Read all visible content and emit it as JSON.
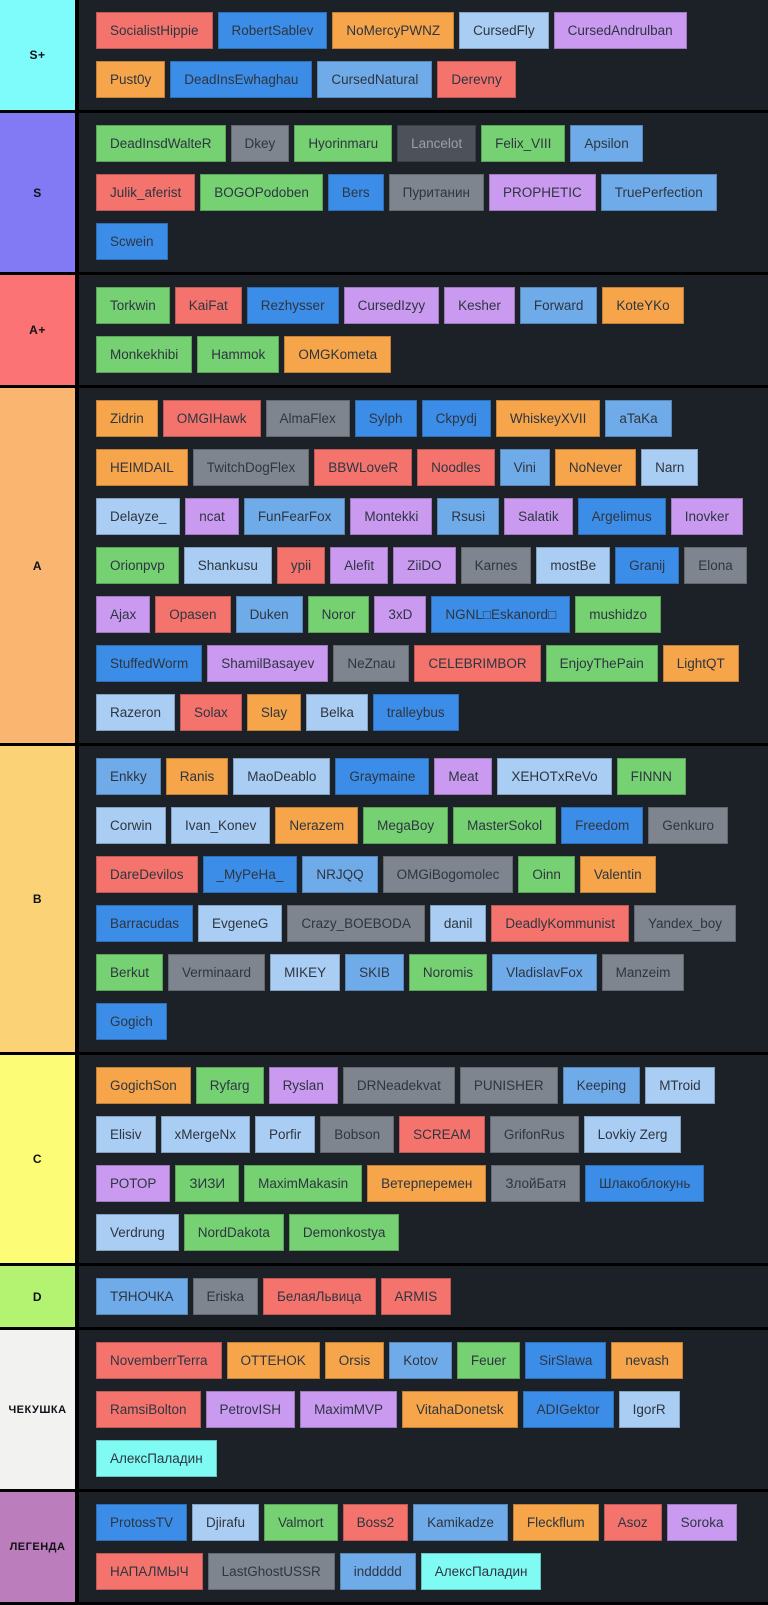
{
  "background": {
    "page": "#1c2027",
    "divider": "#000000"
  },
  "palette": {
    "red": "#f4746d",
    "blue": "#3c8de8",
    "skyblue": "#6fabe9",
    "lightblue": "#a9cdf3",
    "orange": "#f6a54a",
    "lavender": "#c99af0",
    "green": "#76d173",
    "gray": "#7f858e",
    "darkgray": "#4c515a",
    "cyan": "#80fbf4"
  },
  "tiers": [
    {
      "label": "S+",
      "color": "#7efbfb",
      "rows": [
        [
          {
            "t": "SocialistHippie",
            "c": "red"
          },
          {
            "t": "RobertSablev",
            "c": "blue"
          },
          {
            "t": "NoMercyPWNZ",
            "c": "orange"
          },
          {
            "t": "CursedFly",
            "c": "lightblue"
          },
          {
            "t": "CursedAndrulban",
            "c": "lavender"
          }
        ],
        [
          {
            "t": "Pust0y",
            "c": "orange"
          },
          {
            "t": "DeadInsEwhaghau",
            "c": "blue"
          },
          {
            "t": "CursedNatural",
            "c": "skyblue"
          },
          {
            "t": "Derevny",
            "c": "red"
          }
        ]
      ]
    },
    {
      "label": "S",
      "color": "#827af5",
      "rows": [
        [
          {
            "t": "DeadInsdWalteR",
            "c": "green"
          },
          {
            "t": "Dkey",
            "c": "gray"
          },
          {
            "t": "Hyorinmaru",
            "c": "green"
          },
          {
            "t": "Lancelot",
            "c": "darkgray"
          },
          {
            "t": "Felix_VIII",
            "c": "green"
          },
          {
            "t": "Apsilon",
            "c": "skyblue"
          }
        ],
        [
          {
            "t": "Julik_aferist",
            "c": "red"
          },
          {
            "t": "BOGOPodoben",
            "c": "green"
          },
          {
            "t": "Bers",
            "c": "blue"
          },
          {
            "t": "Пуританин",
            "c": "gray"
          },
          {
            "t": "PROPHETIC",
            "c": "lavender"
          },
          {
            "t": "TruePerfection",
            "c": "skyblue"
          }
        ],
        [
          {
            "t": "Scwein",
            "c": "blue"
          }
        ]
      ]
    },
    {
      "label": "A+",
      "color": "#fb7374",
      "rows": [
        [
          {
            "t": "Torkwin",
            "c": "green"
          },
          {
            "t": "KaiFat",
            "c": "red"
          },
          {
            "t": "Rezhysser",
            "c": "blue"
          },
          {
            "t": "CursedIzyy",
            "c": "lavender"
          },
          {
            "t": "Kesher",
            "c": "lavender"
          },
          {
            "t": "Forward",
            "c": "skyblue"
          },
          {
            "t": "KoteYKo",
            "c": "orange"
          }
        ],
        [
          {
            "t": "Monkekhibi",
            "c": "green"
          },
          {
            "t": "Hammok",
            "c": "green"
          },
          {
            "t": "OMGKometa",
            "c": "orange"
          }
        ]
      ]
    },
    {
      "label": "A",
      "color": "#fab671",
      "rows": [
        [
          {
            "t": "Zidrin",
            "c": "orange"
          },
          {
            "t": "OMGIHawk",
            "c": "red"
          },
          {
            "t": "AlmaFlex",
            "c": "gray"
          },
          {
            "t": "Sylph",
            "c": "blue"
          },
          {
            "t": "Ckpydj",
            "c": "blue"
          },
          {
            "t": "WhiskeyXVII",
            "c": "orange"
          },
          {
            "t": "aTaKa",
            "c": "skyblue"
          }
        ],
        [
          {
            "t": "HEIMDAIL",
            "c": "orange"
          },
          {
            "t": "TwitchDogFlex",
            "c": "gray"
          },
          {
            "t": "BBWLoveR",
            "c": "red"
          },
          {
            "t": "Noodles",
            "c": "red"
          },
          {
            "t": "Vini",
            "c": "skyblue"
          },
          {
            "t": "NoNever",
            "c": "orange"
          },
          {
            "t": "Narn",
            "c": "lightblue"
          }
        ],
        [
          {
            "t": "Delayze_",
            "c": "lightblue"
          },
          {
            "t": "ncat",
            "c": "lavender"
          },
          {
            "t": "FunFearFox",
            "c": "skyblue"
          },
          {
            "t": "Montekki",
            "c": "lavender"
          },
          {
            "t": "Rsusi",
            "c": "skyblue"
          },
          {
            "t": "Salatik",
            "c": "lavender"
          },
          {
            "t": "Argelimus",
            "c": "blue"
          },
          {
            "t": "Inovker",
            "c": "lavender"
          }
        ],
        [
          {
            "t": "Orionpvp",
            "c": "green"
          },
          {
            "t": "Shankusu",
            "c": "lightblue"
          },
          {
            "t": "ypii",
            "c": "red"
          },
          {
            "t": "Alefit",
            "c": "lavender"
          },
          {
            "t": "ZiiDO",
            "c": "lavender"
          },
          {
            "t": "Karnes",
            "c": "gray"
          },
          {
            "t": "mostBe",
            "c": "lightblue"
          },
          {
            "t": "Granij",
            "c": "blue"
          },
          {
            "t": "Elona",
            "c": "gray"
          }
        ],
        [
          {
            "t": "Ajax",
            "c": "lavender"
          },
          {
            "t": "Opasen",
            "c": "red"
          },
          {
            "t": "Duken",
            "c": "skyblue"
          },
          {
            "t": "Noror",
            "c": "green"
          },
          {
            "t": "3xD",
            "c": "lavender"
          },
          {
            "t": "NGNL□Eskanord□",
            "c": "blue"
          },
          {
            "t": "mushidzo",
            "c": "green"
          }
        ],
        [
          {
            "t": "StuffedWorm",
            "c": "blue"
          },
          {
            "t": "ShamilBasayev",
            "c": "lavender"
          },
          {
            "t": "NeZnau",
            "c": "gray"
          },
          {
            "t": "CELEBRIMBOR",
            "c": "red"
          },
          {
            "t": "EnjoyThePain",
            "c": "green"
          },
          {
            "t": "LightQT",
            "c": "orange"
          }
        ],
        [
          {
            "t": "Razeron",
            "c": "lightblue"
          },
          {
            "t": "Solax",
            "c": "red"
          },
          {
            "t": "Slay",
            "c": "orange"
          },
          {
            "t": "Belka",
            "c": "lightblue"
          },
          {
            "t": "tralleybus",
            "c": "blue"
          }
        ]
      ]
    },
    {
      "label": "B",
      "color": "#fbd276",
      "rows": [
        [
          {
            "t": "Enkky",
            "c": "skyblue"
          },
          {
            "t": "Ranis",
            "c": "orange"
          },
          {
            "t": "MaoDeablo",
            "c": "lightblue"
          },
          {
            "t": "Graymaine",
            "c": "blue"
          },
          {
            "t": "Meat",
            "c": "lavender"
          },
          {
            "t": "XEHOTxReVo",
            "c": "lightblue"
          },
          {
            "t": "FINNN",
            "c": "green"
          }
        ],
        [
          {
            "t": "Corwin",
            "c": "lightblue"
          },
          {
            "t": "Ivan_Konev",
            "c": "lightblue"
          },
          {
            "t": "Nerazem",
            "c": "orange"
          },
          {
            "t": "MegaBoy",
            "c": "green"
          },
          {
            "t": "MasterSokol",
            "c": "green"
          },
          {
            "t": "Freedom",
            "c": "blue"
          },
          {
            "t": "Genkuro",
            "c": "gray"
          }
        ],
        [
          {
            "t": "DareDevilos",
            "c": "red"
          },
          {
            "t": "_MyPeHa_",
            "c": "blue"
          },
          {
            "t": "NRJQQ",
            "c": "skyblue"
          },
          {
            "t": "OMGiBogomolec",
            "c": "gray"
          },
          {
            "t": "Oinn",
            "c": "green"
          },
          {
            "t": "Valentin",
            "c": "orange"
          }
        ],
        [
          {
            "t": "Barracudas",
            "c": "blue"
          },
          {
            "t": "EvgeneG",
            "c": "lightblue"
          },
          {
            "t": "Crazy_BOEBODA",
            "c": "gray"
          },
          {
            "t": "danil",
            "c": "lightblue"
          },
          {
            "t": "DeadlyKommunist",
            "c": "red"
          },
          {
            "t": "Yandex_boy",
            "c": "gray"
          }
        ],
        [
          {
            "t": "Berkut",
            "c": "green"
          },
          {
            "t": "Verminaard",
            "c": "gray"
          },
          {
            "t": "MIKEY",
            "c": "lightblue"
          },
          {
            "t": "SKIB",
            "c": "skyblue"
          },
          {
            "t": "Noromis",
            "c": "green"
          },
          {
            "t": "VladislavFox",
            "c": "skyblue"
          },
          {
            "t": "Manzeim",
            "c": "gray"
          }
        ],
        [
          {
            "t": "Gogich",
            "c": "blue"
          }
        ]
      ]
    },
    {
      "label": "C",
      "color": "#fdfc76",
      "rows": [
        [
          {
            "t": "GogichSon",
            "c": "orange"
          },
          {
            "t": "Ryfarg",
            "c": "green"
          },
          {
            "t": "Ryslan",
            "c": "lavender"
          },
          {
            "t": "DRNeadekvat",
            "c": "gray"
          },
          {
            "t": "PUNISHER",
            "c": "gray"
          },
          {
            "t": "Keeping",
            "c": "skyblue"
          },
          {
            "t": "MTroid",
            "c": "lightblue"
          }
        ],
        [
          {
            "t": "Elisiv",
            "c": "lightblue"
          },
          {
            "t": "xMergeNx",
            "c": "lightblue"
          },
          {
            "t": "Porfir",
            "c": "lightblue"
          },
          {
            "t": "Bobson",
            "c": "gray"
          },
          {
            "t": "SCREAM",
            "c": "red"
          },
          {
            "t": "GrifonRus",
            "c": "gray"
          },
          {
            "t": "Lovkiy Zerg",
            "c": "lightblue"
          }
        ],
        [
          {
            "t": "РОТОР",
            "c": "lavender"
          },
          {
            "t": "ЗИЗИ",
            "c": "green"
          },
          {
            "t": "MaximMakasin",
            "c": "green"
          },
          {
            "t": "Ветерперемен",
            "c": "orange"
          },
          {
            "t": "ЗлойБатя",
            "c": "gray"
          },
          {
            "t": "Шлакоблокунь",
            "c": "blue"
          }
        ],
        [
          {
            "t": "Verdrung",
            "c": "lightblue"
          },
          {
            "t": "NordDakota",
            "c": "green"
          },
          {
            "t": "Demonkostya",
            "c": "green"
          }
        ]
      ]
    },
    {
      "label": "D",
      "color": "#b4f271",
      "rows": [
        [
          {
            "t": "ТЯНОЧКА",
            "c": "skyblue"
          },
          {
            "t": "Eriska",
            "c": "gray"
          },
          {
            "t": "БелаяЛьвица",
            "c": "red"
          },
          {
            "t": "ARMIS",
            "c": "red"
          }
        ]
      ]
    },
    {
      "label": "ЧЕКУШКА",
      "color": "#f2f2f0",
      "rows": [
        [
          {
            "t": "NovemberrTerra",
            "c": "red"
          },
          {
            "t": "OTTEHOK",
            "c": "orange"
          },
          {
            "t": "Orsis",
            "c": "orange"
          },
          {
            "t": "Kotov",
            "c": "skyblue"
          },
          {
            "t": "Feuer",
            "c": "green"
          },
          {
            "t": "SirSlawa",
            "c": "blue"
          },
          {
            "t": "nevash",
            "c": "orange"
          }
        ],
        [
          {
            "t": "RamsiBolton",
            "c": "red"
          },
          {
            "t": "PetrovISH",
            "c": "lavender"
          },
          {
            "t": "MaximMVP",
            "c": "lavender"
          },
          {
            "t": "VitahaDonetsk",
            "c": "orange"
          },
          {
            "t": "ADIGektor",
            "c": "blue"
          },
          {
            "t": "IgorR",
            "c": "lightblue"
          }
        ],
        [
          {
            "t": "АлексПаладин",
            "c": "cyan"
          }
        ]
      ]
    },
    {
      "label": "ЛЕГЕНДА",
      "color": "#bc7dbc",
      "rows": [
        [
          {
            "t": "ProtossTV",
            "c": "blue"
          },
          {
            "t": "Djirafu",
            "c": "lightblue"
          },
          {
            "t": "Valmort",
            "c": "green"
          },
          {
            "t": "Boss2",
            "c": "red"
          },
          {
            "t": "Kamikadze",
            "c": "skyblue"
          },
          {
            "t": "Fleckflum",
            "c": "orange"
          },
          {
            "t": "Asoz",
            "c": "red"
          },
          {
            "t": "Soroka",
            "c": "lavender"
          }
        ],
        [
          {
            "t": "НАПАЛМЫЧ",
            "c": "red"
          },
          {
            "t": "LastGhostUSSR",
            "c": "gray"
          },
          {
            "t": "inddddd",
            "c": "skyblue"
          },
          {
            "t": "АлексПаладин",
            "c": "cyan"
          }
        ]
      ]
    }
  ]
}
